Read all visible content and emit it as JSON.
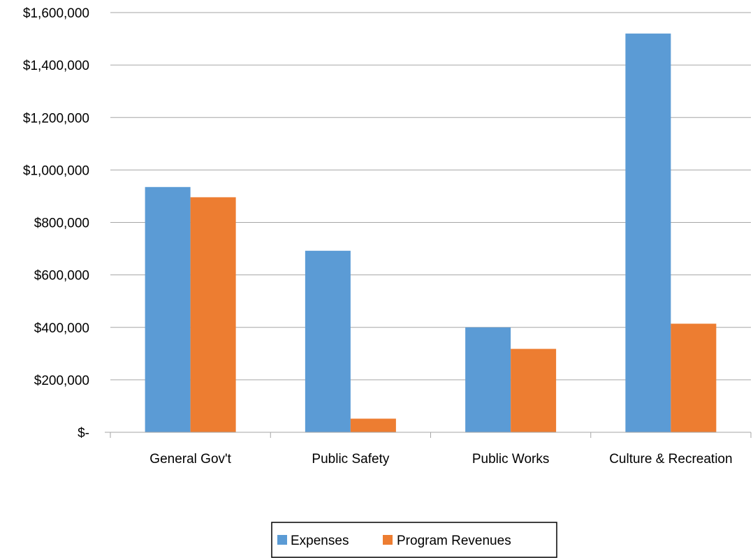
{
  "chart_data": {
    "type": "bar",
    "title": "",
    "xlabel": "",
    "ylabel": "",
    "categories": [
      "General Gov't",
      "Public Safety",
      "Public Works",
      "Culture & Recreation"
    ],
    "series": [
      {
        "name": "Expenses",
        "color": "#5B9BD5",
        "values": [
          935000,
          692000,
          400000,
          1520000
        ]
      },
      {
        "name": "Program Revenues",
        "color": "#ED7D31",
        "values": [
          896000,
          52000,
          318000,
          414000
        ]
      }
    ],
    "ylim": [
      0,
      1600000
    ],
    "y_ticks": [
      {
        "value": 0,
        "label": "$-"
      },
      {
        "value": 200000,
        "label": "$200,000"
      },
      {
        "value": 400000,
        "label": "$400,000"
      },
      {
        "value": 600000,
        "label": "$600,000"
      },
      {
        "value": 800000,
        "label": "$800,000"
      },
      {
        "value": 1000000,
        "label": "$1,000,000"
      },
      {
        "value": 1200000,
        "label": "$1,200,000"
      },
      {
        "value": 1400000,
        "label": "$1,400,000"
      },
      {
        "value": 1600000,
        "label": "$1,600,000"
      }
    ],
    "grid": true,
    "legend_position": "bottom"
  }
}
